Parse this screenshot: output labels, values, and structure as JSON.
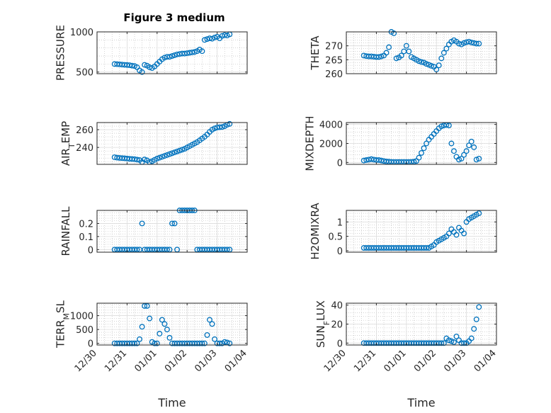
{
  "figure": {
    "title": "Figure 3 medium",
    "marker_color": "#0072bd",
    "axis_color": "#262626",
    "grid_color": "#b8b8b8"
  },
  "x_axis": {
    "range": [
      "12/30",
      "01/04"
    ],
    "ticks": [
      "12/30",
      "12/31",
      "01/01",
      "01/02",
      "01/03",
      "01/04"
    ],
    "label": "Time",
    "grid_minor": true
  },
  "chart_data": [
    {
      "type": "scatter",
      "ylabel": "PRESSURE",
      "ylim": [
        480,
        1000
      ],
      "yticks": [
        500,
        1000
      ],
      "x": [
        "12/30 14:00",
        "12/30 16:00",
        "12/30 18:00",
        "12/30 20:00",
        "12/30 22:00",
        "12/31 00:00",
        "12/31 02:00",
        "12/31 04:00",
        "12/31 06:00",
        "12/31 08:00",
        "12/31 10:00",
        "12/31 12:00",
        "12/31 14:00",
        "12/31 16:00",
        "12/31 18:00",
        "12/31 20:00",
        "12/31 22:00",
        "01/01 00:00",
        "01/01 02:00",
        "01/01 04:00",
        "01/01 06:00",
        "01/01 08:00",
        "01/01 10:00",
        "01/01 12:00",
        "01/01 14:00",
        "01/01 16:00",
        "01/01 18:00",
        "01/01 20:00",
        "01/01 22:00",
        "01/02 00:00",
        "01/02 02:00",
        "01/02 04:00",
        "01/02 06:00",
        "01/02 08:00",
        "01/02 10:00",
        "01/02 12:00",
        "01/02 14:00",
        "01/02 16:00",
        "01/02 18:00",
        "01/02 20:00",
        "01/02 22:00",
        "01/03 00:00",
        "01/03 02:00",
        "01/03 04:00",
        "01/03 06:00",
        "01/03 08:00",
        "01/03 10:00"
      ],
      "y": [
        600,
        598,
        596,
        593,
        590,
        588,
        585,
        580,
        575,
        560,
        520,
        500,
        590,
        580,
        560,
        550,
        570,
        600,
        630,
        660,
        680,
        690,
        690,
        700,
        710,
        720,
        725,
        730,
        730,
        735,
        740,
        745,
        750,
        760,
        780,
        760,
        900,
        910,
        920,
        915,
        930,
        940,
        920,
        950,
        960,
        955,
        970
      ]
    },
    {
      "type": "scatter",
      "ylabel": "THETA",
      "ylim": [
        260,
        275
      ],
      "yticks": [
        260,
        265,
        270
      ],
      "x": [
        "12/30 14:00",
        "12/30 16:00",
        "12/30 18:00",
        "12/30 20:00",
        "12/30 22:00",
        "12/31 00:00",
        "12/31 02:00",
        "12/31 04:00",
        "12/31 06:00",
        "12/31 08:00",
        "12/31 10:00",
        "12/31 12:00",
        "12/31 14:00",
        "12/31 16:00",
        "12/31 18:00",
        "12/31 20:00",
        "12/31 22:00",
        "01/01 00:00",
        "01/01 02:00",
        "01/01 04:00",
        "01/01 06:00",
        "01/01 08:00",
        "01/01 10:00",
        "01/01 12:00",
        "01/01 14:00",
        "01/01 16:00",
        "01/01 18:00",
        "01/01 20:00",
        "01/01 22:00",
        "01/02 00:00",
        "01/02 02:00",
        "01/02 04:00",
        "01/02 06:00",
        "01/02 08:00",
        "01/02 10:00",
        "01/02 12:00",
        "01/02 14:00",
        "01/02 16:00",
        "01/02 18:00",
        "01/02 20:00",
        "01/02 22:00",
        "01/03 00:00",
        "01/03 02:00",
        "01/03 04:00",
        "01/03 06:00",
        "01/03 08:00",
        "01/03 10:00"
      ],
      "y": [
        266.5,
        266.3,
        266.2,
        266.2,
        266.1,
        266.0,
        266.0,
        266.2,
        266.5,
        267.5,
        269.5,
        275.0,
        274.5,
        265.5,
        265.8,
        266.5,
        268.0,
        270.0,
        268.0,
        266.0,
        265.5,
        265.0,
        264.5,
        264.2,
        264.0,
        263.5,
        263.2,
        262.8,
        262.5,
        261.5,
        263.0,
        265.5,
        267.5,
        269.0,
        270.5,
        271.5,
        272.0,
        271.5,
        270.8,
        270.5,
        271.0,
        271.3,
        271.5,
        271.2,
        271.0,
        270.8,
        270.8
      ]
    },
    {
      "type": "scatter",
      "ylabel": "AIR_TEMP",
      "ylim": [
        221,
        268
      ],
      "yticks": [
        240,
        260
      ],
      "x": [
        "12/30 14:00",
        "12/30 16:00",
        "12/30 18:00",
        "12/30 20:00",
        "12/30 22:00",
        "12/31 00:00",
        "12/31 02:00",
        "12/31 04:00",
        "12/31 06:00",
        "12/31 08:00",
        "12/31 10:00",
        "12/31 12:00",
        "12/31 14:00",
        "12/31 16:00",
        "12/31 18:00",
        "12/31 20:00",
        "12/31 22:00",
        "01/01 00:00",
        "01/01 02:00",
        "01/01 04:00",
        "01/01 06:00",
        "01/01 08:00",
        "01/01 10:00",
        "01/01 12:00",
        "01/01 14:00",
        "01/01 16:00",
        "01/01 18:00",
        "01/01 20:00",
        "01/01 22:00",
        "01/02 00:00",
        "01/02 02:00",
        "01/02 04:00",
        "01/02 06:00",
        "01/02 08:00",
        "01/02 10:00",
        "01/02 12:00",
        "01/02 14:00",
        "01/02 16:00",
        "01/02 18:00",
        "01/02 20:00",
        "01/02 22:00",
        "01/03 00:00",
        "01/03 02:00",
        "01/03 04:00",
        "01/03 06:00",
        "01/03 08:00",
        "01/03 10:00"
      ],
      "y": [
        229,
        228.5,
        228.2,
        228,
        227.8,
        227.5,
        227.2,
        227,
        226.8,
        226.3,
        225.8,
        223.5,
        226.5,
        225.5,
        223.5,
        224.5,
        226.0,
        227.5,
        228.5,
        229.5,
        230.5,
        231.5,
        232.5,
        233.5,
        234.5,
        235.5,
        236.5,
        237.5,
        238.5,
        240.0,
        241.5,
        243.0,
        244.5,
        246.0,
        248.0,
        250.0,
        252.0,
        254.5,
        257.5,
        260.0,
        261.5,
        262.5,
        262.8,
        263.0,
        264.0,
        265.5,
        266.5
      ]
    },
    {
      "type": "scatter",
      "ylabel": "MIXDEPTH",
      "ylim": [
        -200,
        4200
      ],
      "yticks": [
        0,
        2000,
        4000
      ],
      "x": [
        "12/30 14:00",
        "12/30 16:00",
        "12/30 18:00",
        "12/30 20:00",
        "12/30 22:00",
        "12/31 00:00",
        "12/31 02:00",
        "12/31 04:00",
        "12/31 06:00",
        "12/31 08:00",
        "12/31 10:00",
        "12/31 12:00",
        "12/31 14:00",
        "12/31 16:00",
        "12/31 18:00",
        "12/31 20:00",
        "12/31 22:00",
        "01/01 00:00",
        "01/01 02:00",
        "01/01 04:00",
        "01/01 06:00",
        "01/01 08:00",
        "01/01 10:00",
        "01/01 12:00",
        "01/01 14:00",
        "01/01 16:00",
        "01/01 18:00",
        "01/01 20:00",
        "01/01 22:00",
        "01/02 00:00",
        "01/02 02:00",
        "01/02 04:00",
        "01/02 06:00",
        "01/02 08:00",
        "01/02 10:00",
        "01/02 12:00",
        "01/02 14:00",
        "01/02 16:00",
        "01/02 18:00",
        "01/02 20:00",
        "01/02 22:00",
        "01/03 00:00",
        "01/03 02:00",
        "01/03 04:00",
        "01/03 06:00",
        "01/03 08:00",
        "01/03 10:00"
      ],
      "y": [
        200,
        250,
        300,
        350,
        300,
        250,
        250,
        200,
        150,
        100,
        80,
        60,
        50,
        50,
        50,
        50,
        50,
        50,
        50,
        60,
        80,
        150,
        500,
        1000,
        1500,
        2000,
        2400,
        2700,
        3000,
        3300,
        3600,
        3800,
        3900,
        3950,
        3900,
        2000,
        1200,
        600,
        300,
        400,
        800,
        1200,
        1800,
        2200,
        1600,
        300,
        400
      ]
    },
    {
      "type": "scatter",
      "ylabel": "RAINFALL",
      "ylim": [
        -0.02,
        0.3
      ],
      "yticks": [
        0,
        0.1,
        0.2
      ],
      "x": [
        "12/30 14:00",
        "12/30 16:00",
        "12/30 18:00",
        "12/30 20:00",
        "12/30 22:00",
        "12/31 00:00",
        "12/31 02:00",
        "12/31 04:00",
        "12/31 06:00",
        "12/31 08:00",
        "12/31 10:00",
        "12/31 12:00",
        "12/31 14:00",
        "12/31 16:00",
        "12/31 18:00",
        "12/31 20:00",
        "12/31 22:00",
        "01/01 00:00",
        "01/01 02:00",
        "01/01 04:00",
        "01/01 06:00",
        "01/01 08:00",
        "01/01 10:00",
        "01/01 12:00",
        "01/01 14:00",
        "01/01 16:00",
        "01/01 18:00",
        "01/01 20:00",
        "01/01 22:00",
        "01/02 00:00",
        "01/02 02:00",
        "01/02 04:00",
        "01/02 06:00",
        "01/02 08:00",
        "01/02 10:00",
        "01/02 12:00",
        "01/02 14:00",
        "01/02 16:00",
        "01/02 18:00",
        "01/02 20:00",
        "01/02 22:00",
        "01/03 00:00",
        "01/03 02:00",
        "01/03 04:00",
        "01/03 06:00",
        "01/03 08:00",
        "01/03 10:00"
      ],
      "y": [
        0,
        0,
        0,
        0,
        0,
        0,
        0,
        0,
        0,
        0,
        0,
        0.2,
        0,
        0,
        0,
        0,
        0,
        0,
        0,
        0,
        0,
        0,
        0,
        0.2,
        0.2,
        0,
        0.3,
        0.3,
        0.3,
        0.3,
        0.3,
        0.3,
        0.3,
        0,
        0,
        0,
        0,
        0,
        0,
        0,
        0,
        0,
        0,
        0,
        0,
        0,
        0
      ]
    },
    {
      "type": "scatter",
      "ylabel": "H2OMIXRA",
      "ylim": [
        -0.05,
        1.4
      ],
      "yticks": [
        0,
        0.5,
        1
      ],
      "x": [
        "12/30 14:00",
        "12/30 16:00",
        "12/30 18:00",
        "12/30 20:00",
        "12/30 22:00",
        "12/31 00:00",
        "12/31 02:00",
        "12/31 04:00",
        "12/31 06:00",
        "12/31 08:00",
        "12/31 10:00",
        "12/31 12:00",
        "12/31 14:00",
        "12/31 16:00",
        "12/31 18:00",
        "12/31 20:00",
        "12/31 22:00",
        "01/01 00:00",
        "01/01 02:00",
        "01/01 04:00",
        "01/01 06:00",
        "01/01 08:00",
        "01/01 10:00",
        "01/01 12:00",
        "01/01 14:00",
        "01/01 16:00",
        "01/01 18:00",
        "01/01 20:00",
        "01/01 22:00",
        "01/02 00:00",
        "01/02 02:00",
        "01/02 04:00",
        "01/02 06:00",
        "01/02 08:00",
        "01/02 10:00",
        "01/02 12:00",
        "01/02 14:00",
        "01/02 16:00",
        "01/02 18:00",
        "01/02 20:00",
        "01/02 22:00",
        "01/03 00:00",
        "01/03 02:00",
        "01/03 04:00",
        "01/03 06:00",
        "01/03 08:00",
        "01/03 10:00"
      ],
      "y": [
        0.1,
        0.1,
        0.1,
        0.1,
        0.1,
        0.1,
        0.1,
        0.1,
        0.1,
        0.1,
        0.1,
        0.1,
        0.1,
        0.1,
        0.1,
        0.1,
        0.1,
        0.1,
        0.1,
        0.1,
        0.1,
        0.1,
        0.1,
        0.1,
        0.1,
        0.1,
        0.1,
        0.15,
        0.2,
        0.3,
        0.35,
        0.4,
        0.45,
        0.5,
        0.6,
        0.75,
        0.65,
        0.55,
        0.8,
        0.7,
        0.6,
        1.0,
        1.1,
        1.15,
        1.2,
        1.25,
        1.3
      ]
    },
    {
      "type": "scatter",
      "ylabel": "TERR_MSL",
      "ylim": [
        -60,
        1450
      ],
      "yticks": [
        0,
        500,
        1000
      ],
      "x": [
        "12/30 14:00",
        "12/30 16:00",
        "12/30 18:00",
        "12/30 20:00",
        "12/30 22:00",
        "12/31 00:00",
        "12/31 02:00",
        "12/31 04:00",
        "12/31 06:00",
        "12/31 08:00",
        "12/31 10:00",
        "12/31 12:00",
        "12/31 14:00",
        "12/31 16:00",
        "12/31 18:00",
        "12/31 20:00",
        "12/31 22:00",
        "01/01 00:00",
        "01/01 02:00",
        "01/01 04:00",
        "01/01 06:00",
        "01/01 08:00",
        "01/01 10:00",
        "01/01 12:00",
        "01/01 14:00",
        "01/01 16:00",
        "01/01 18:00",
        "01/01 20:00",
        "01/01 22:00",
        "01/02 00:00",
        "01/02 02:00",
        "01/02 04:00",
        "01/02 06:00",
        "01/02 08:00",
        "01/02 10:00",
        "01/02 12:00",
        "01/02 14:00",
        "01/02 16:00",
        "01/02 18:00",
        "01/02 20:00",
        "01/02 22:00",
        "01/03 00:00",
        "01/03 02:00",
        "01/03 04:00",
        "01/03 06:00",
        "01/03 08:00",
        "01/03 10:00"
      ],
      "y": [
        0,
        0,
        0,
        0,
        0,
        0,
        0,
        0,
        0,
        0,
        150,
        600,
        1350,
        1350,
        900,
        50,
        0,
        0,
        350,
        850,
        700,
        500,
        200,
        0,
        0,
        0,
        0,
        0,
        0,
        0,
        0,
        0,
        0,
        0,
        0,
        0,
        0,
        300,
        850,
        700,
        150,
        0,
        0,
        0,
        50,
        30,
        0
      ]
    },
    {
      "type": "scatter",
      "ylabel": "SUN_FLUX",
      "ylim": [
        -2,
        42
      ],
      "yticks": [
        0,
        20,
        40
      ],
      "x": [
        "12/30 14:00",
        "12/30 16:00",
        "12/30 18:00",
        "12/30 20:00",
        "12/30 22:00",
        "12/31 00:00",
        "12/31 02:00",
        "12/31 04:00",
        "12/31 06:00",
        "12/31 08:00",
        "12/31 10:00",
        "12/31 12:00",
        "12/31 14:00",
        "12/31 16:00",
        "12/31 18:00",
        "12/31 20:00",
        "12/31 22:00",
        "01/01 00:00",
        "01/01 02:00",
        "01/01 04:00",
        "01/01 06:00",
        "01/01 08:00",
        "01/01 10:00",
        "01/01 12:00",
        "01/01 14:00",
        "01/01 16:00",
        "01/01 18:00",
        "01/01 20:00",
        "01/01 22:00",
        "01/02 00:00",
        "01/02 02:00",
        "01/02 04:00",
        "01/02 06:00",
        "01/02 08:00",
        "01/02 10:00",
        "01/02 12:00",
        "01/02 14:00",
        "01/02 16:00",
        "01/02 18:00",
        "01/02 20:00",
        "01/02 22:00",
        "01/03 00:00",
        "01/03 02:00",
        "01/03 04:00",
        "01/03 06:00",
        "01/03 08:00",
        "01/03 10:00"
      ],
      "y": [
        0,
        0,
        0,
        0,
        0,
        0,
        0,
        0,
        0,
        0,
        0,
        0,
        0,
        0,
        0,
        0,
        0,
        0,
        0,
        0,
        0,
        0,
        0,
        0,
        0,
        0,
        0,
        0,
        0,
        0,
        0,
        0,
        0,
        5,
        3,
        2,
        1,
        7,
        3,
        0,
        0,
        0,
        2,
        5,
        15,
        25,
        38
      ]
    }
  ]
}
